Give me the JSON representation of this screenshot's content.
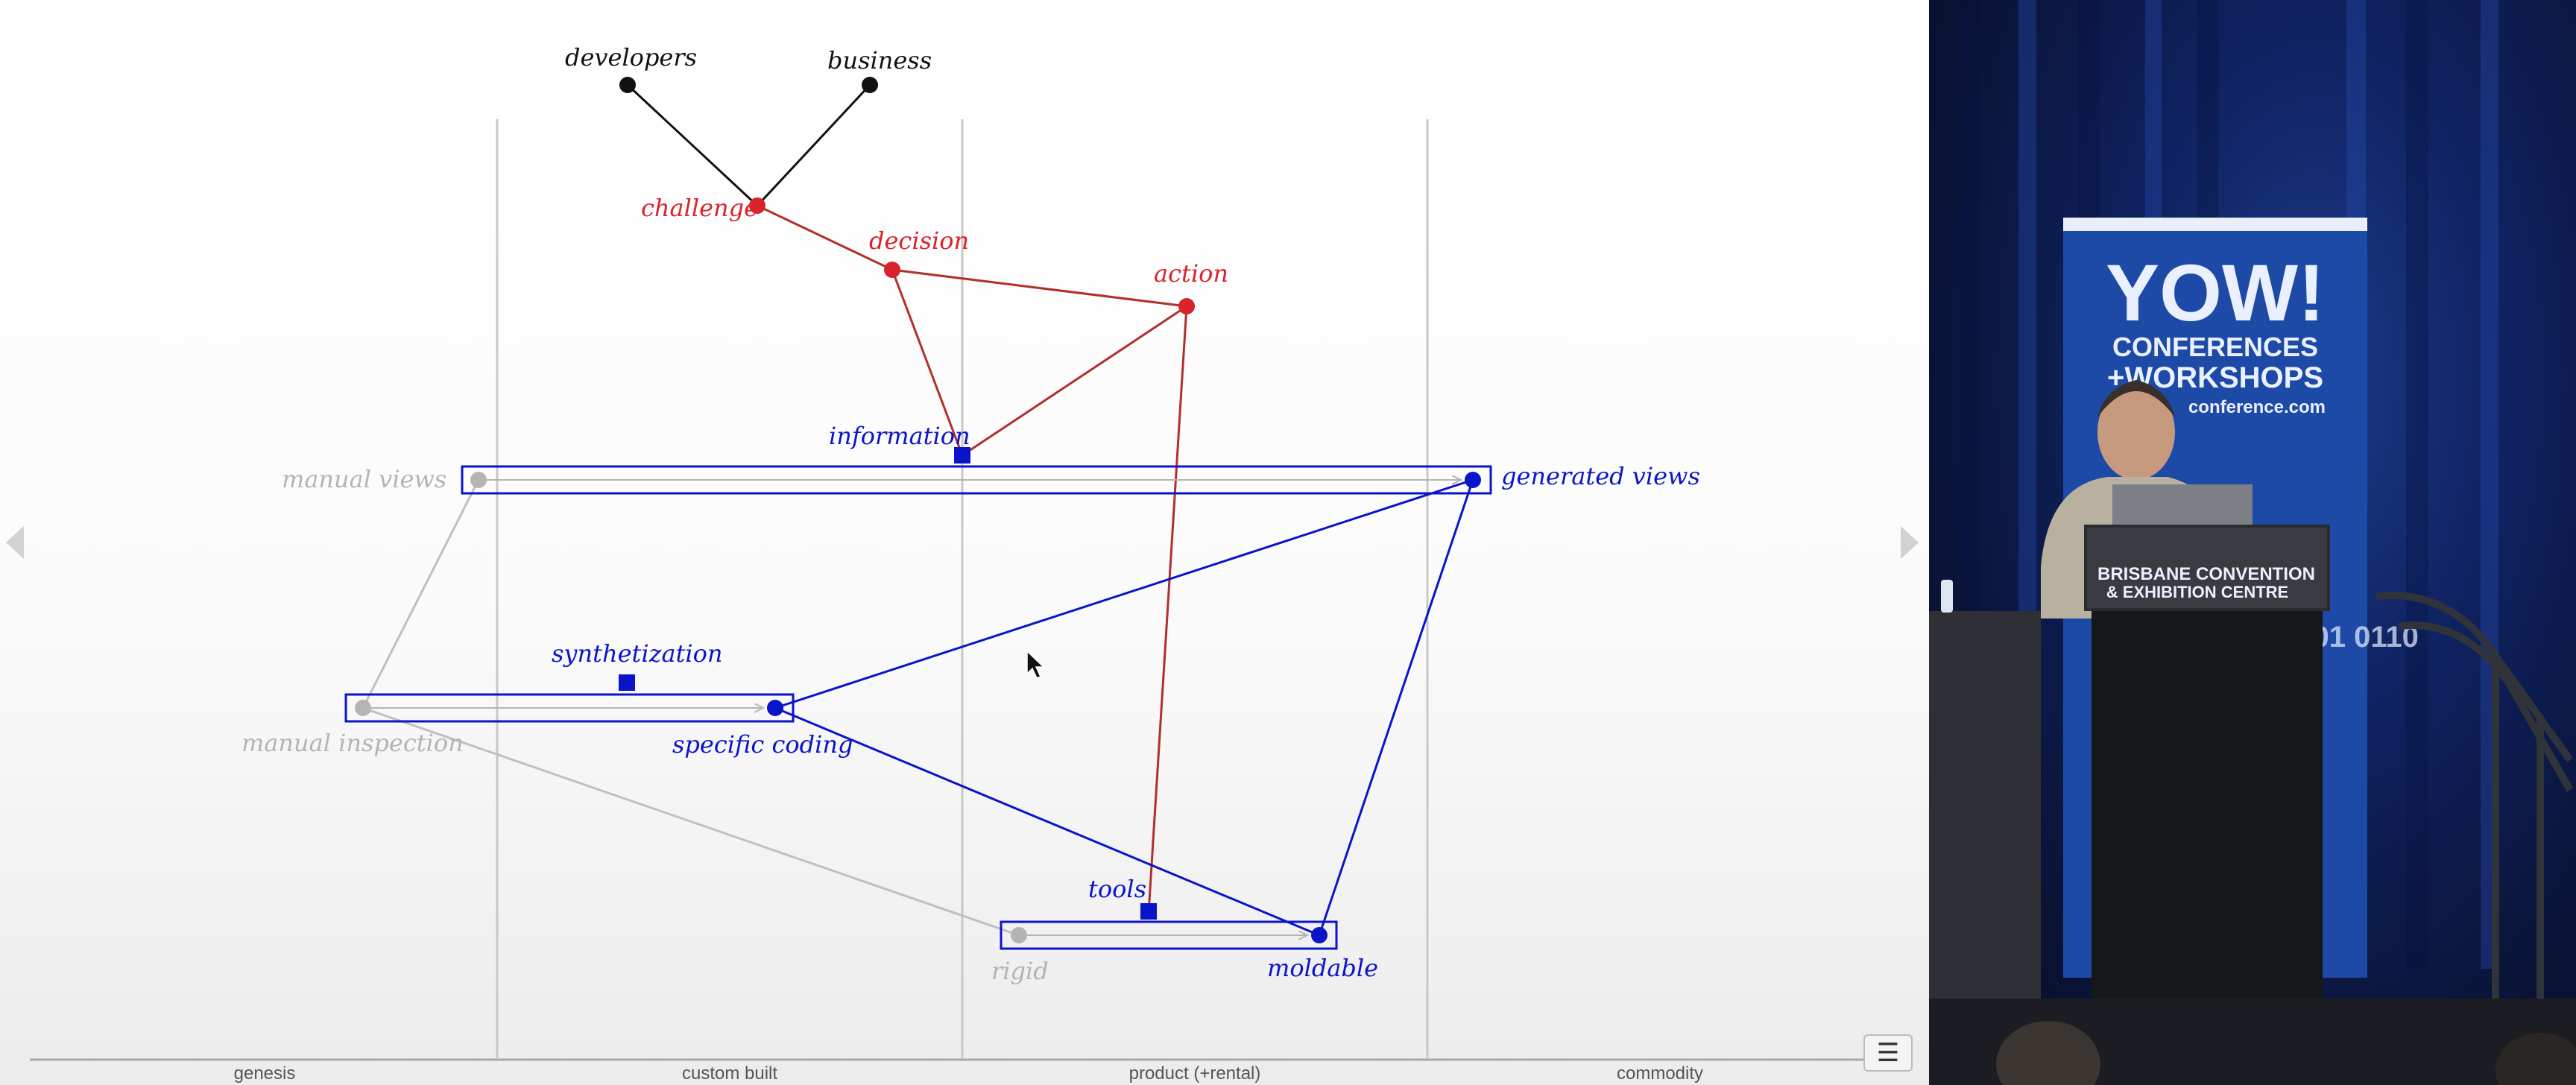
{
  "diagram": {
    "axis_labels": [
      "genesis",
      "custom built",
      "product (+rental)",
      "commodity"
    ],
    "nodes": {
      "developers": "developers",
      "business": "business",
      "challenge": "challenge",
      "decision": "decision",
      "action": "action",
      "information": "information",
      "manual_views": "manual views",
      "generated_views": "generated views",
      "synthetization": "synthetization",
      "manual_inspection": "manual inspection",
      "specific_coding": "specific coding",
      "tools": "tools",
      "rigid": "rigid",
      "moldable": "moldable"
    },
    "colors": {
      "black": "#111111",
      "red": "#d9232b",
      "dark_red": "#b0302c",
      "blue": "#0a14c8",
      "gray": "#b4b4b4"
    }
  },
  "controls": {
    "prev_icon": "triangle-left-icon",
    "next_icon": "triangle-right-icon",
    "menu_icon": "hamburger-menu-icon",
    "menu_glyph": "☰"
  },
  "video": {
    "banner_logo": "YOW!",
    "banner_line1": "CONFERENCES",
    "banner_line2": "+WORKSHOPS",
    "banner_url": "conference.com",
    "podium_line1": "BRISBANE CONVENTION",
    "podium_line2": "& EXHIBITION CENTRE",
    "binary_text": "0101 0110"
  }
}
